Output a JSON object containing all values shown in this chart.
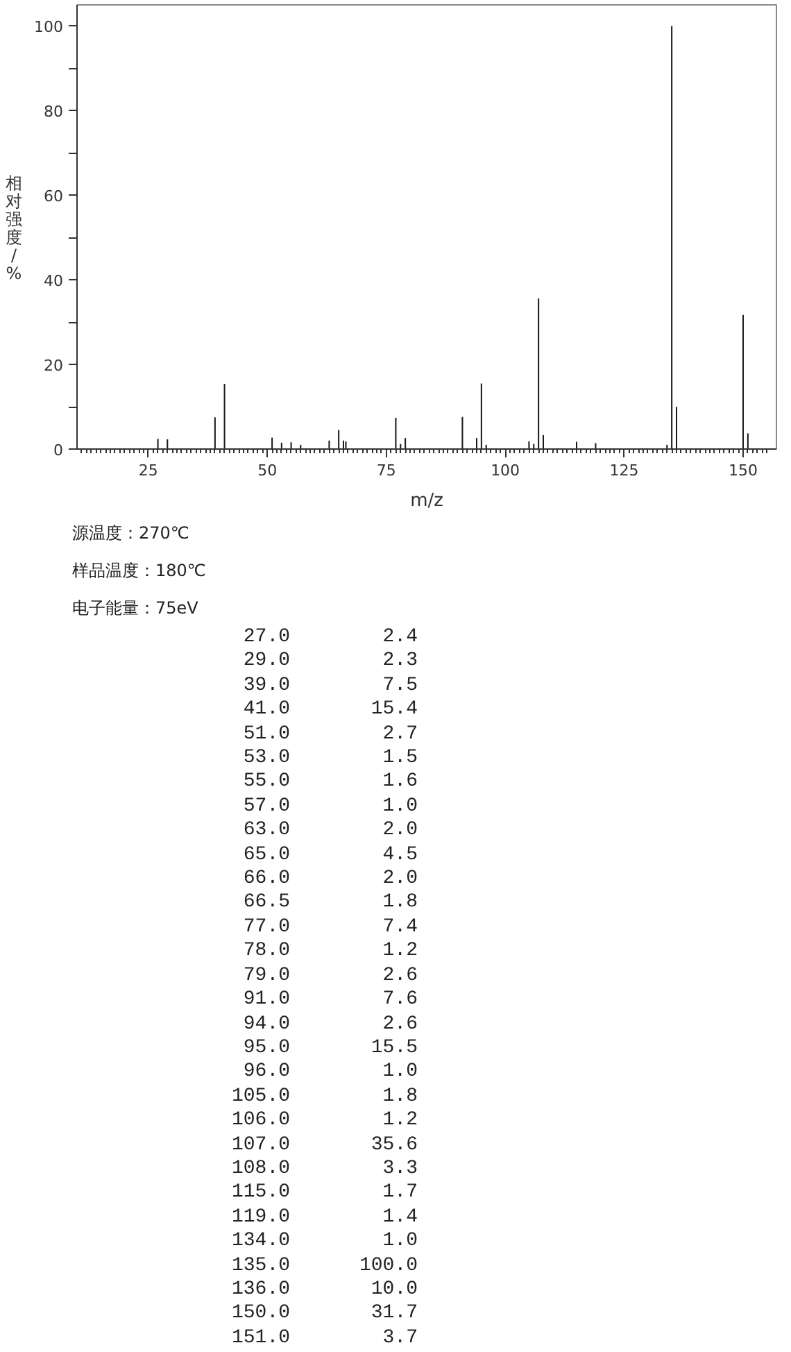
{
  "chart_data": [
    {
      "type": "bar",
      "xlabel": "m/z",
      "ylabel": "相对强度/%",
      "x": [
        27.0,
        29.0,
        39.0,
        41.0,
        51.0,
        53.0,
        55.0,
        57.0,
        63.0,
        65.0,
        66.0,
        66.5,
        77.0,
        78.0,
        79.0,
        91.0,
        94.0,
        95.0,
        96.0,
        105.0,
        106.0,
        107.0,
        108.0,
        115.0,
        119.0,
        134.0,
        135.0,
        136.0,
        150.0,
        151.0
      ],
      "values": [
        2.4,
        2.3,
        7.5,
        15.4,
        2.7,
        1.5,
        1.6,
        1.0,
        2.0,
        4.5,
        2.0,
        1.8,
        7.4,
        1.2,
        2.6,
        7.6,
        2.6,
        15.5,
        1.0,
        1.8,
        1.2,
        35.6,
        3.3,
        1.7,
        1.4,
        1.0,
        100.0,
        10.0,
        31.7,
        3.7
      ],
      "color": "#1a1a1a",
      "grid": false,
      "xlim": [
        10,
        157
      ],
      "ylim": [
        0,
        105
      ],
      "yticks": [
        0,
        {
          "value": 10,
          "label": null
        },
        20,
        {
          "value": 30,
          "label": null
        },
        40,
        {
          "value": 50,
          "label": null
        },
        60,
        {
          "value": 70,
          "label": null
        },
        80,
        {
          "value": 90,
          "label": null
        },
        100
      ],
      "xticks": [
        {
          "value": 11,
          "label": null
        },
        {
          "value": 12,
          "label": null
        },
        {
          "value": 13,
          "label": null
        },
        {
          "value": 14,
          "label": null
        },
        {
          "value": 15,
          "label": null
        },
        {
          "value": 16,
          "label": null
        },
        {
          "value": 17,
          "label": null
        },
        {
          "value": 18,
          "label": null
        },
        {
          "value": 19,
          "label": null
        },
        {
          "value": 20,
          "label": null
        },
        {
          "value": 21,
          "label": null
        },
        {
          "value": 22,
          "label": null
        },
        {
          "value": 23,
          "label": null
        },
        {
          "value": 24,
          "label": null
        },
        25,
        {
          "value": 26,
          "label": null
        },
        {
          "value": 27,
          "label": null
        },
        {
          "value": 28,
          "label": null
        },
        {
          "value": 29,
          "label": null
        },
        {
          "value": 30,
          "label": null
        },
        {
          "value": 31,
          "label": null
        },
        {
          "value": 32,
          "label": null
        },
        {
          "value": 33,
          "label": null
        },
        {
          "value": 34,
          "label": null
        },
        {
          "value": 35,
          "label": null
        },
        {
          "value": 36,
          "label": null
        },
        {
          "value": 37,
          "label": null
        },
        {
          "value": 38,
          "label": null
        },
        {
          "value": 39,
          "label": null
        },
        {
          "value": 40,
          "label": null
        },
        {
          "value": 41,
          "label": null
        },
        {
          "value": 42,
          "label": null
        },
        {
          "value": 43,
          "label": null
        },
        {
          "value": 44,
          "label": null
        },
        {
          "value": 45,
          "label": null
        },
        {
          "value": 46,
          "label": null
        },
        {
          "value": 47,
          "label": null
        },
        {
          "value": 48,
          "label": null
        },
        {
          "value": 49,
          "label": null
        },
        50,
        {
          "value": 51,
          "label": null
        },
        {
          "value": 52,
          "label": null
        },
        {
          "value": 53,
          "label": null
        },
        {
          "value": 54,
          "label": null
        },
        {
          "value": 55,
          "label": null
        },
        {
          "value": 56,
          "label": null
        },
        {
          "value": 57,
          "label": null
        },
        {
          "value": 58,
          "label": null
        },
        {
          "value": 59,
          "label": null
        },
        {
          "value": 60,
          "label": null
        },
        {
          "value": 61,
          "label": null
        },
        {
          "value": 62,
          "label": null
        },
        {
          "value": 63,
          "label": null
        },
        {
          "value": 64,
          "label": null
        },
        {
          "value": 65,
          "label": null
        },
        {
          "value": 66,
          "label": null
        },
        {
          "value": 67,
          "label": null
        },
        {
          "value": 68,
          "label": null
        },
        {
          "value": 69,
          "label": null
        },
        {
          "value": 70,
          "label": null
        },
        {
          "value": 71,
          "label": null
        },
        {
          "value": 72,
          "label": null
        },
        {
          "value": 73,
          "label": null
        },
        {
          "value": 74,
          "label": null
        },
        75,
        {
          "value": 76,
          "label": null
        },
        {
          "value": 77,
          "label": null
        },
        {
          "value": 78,
          "label": null
        },
        {
          "value": 79,
          "label": null
        },
        {
          "value": 80,
          "label": null
        },
        {
          "value": 81,
          "label": null
        },
        {
          "value": 82,
          "label": null
        },
        {
          "value": 83,
          "label": null
        },
        {
          "value": 84,
          "label": null
        },
        {
          "value": 85,
          "label": null
        },
        {
          "value": 86,
          "label": null
        },
        {
          "value": 87,
          "label": null
        },
        {
          "value": 88,
          "label": null
        },
        {
          "value": 89,
          "label": null
        },
        {
          "value": 90,
          "label": null
        },
        {
          "value": 91,
          "label": null
        },
        {
          "value": 92,
          "label": null
        },
        {
          "value": 93,
          "label": null
        },
        {
          "value": 94,
          "label": null
        },
        {
          "value": 95,
          "label": null
        },
        {
          "value": 96,
          "label": null
        },
        {
          "value": 97,
          "label": null
        },
        {
          "value": 98,
          "label": null
        },
        {
          "value": 99,
          "label": null
        },
        100,
        {
          "value": 101,
          "label": null
        },
        {
          "value": 102,
          "label": null
        },
        {
          "value": 103,
          "label": null
        },
        {
          "value": 104,
          "label": null
        },
        {
          "value": 105,
          "label": null
        },
        {
          "value": 106,
          "label": null
        },
        {
          "value": 107,
          "label": null
        },
        {
          "value": 108,
          "label": null
        },
        {
          "value": 109,
          "label": null
        },
        {
          "value": 110,
          "label": null
        },
        {
          "value": 111,
          "label": null
        },
        {
          "value": 112,
          "label": null
        },
        {
          "value": 113,
          "label": null
        },
        {
          "value": 114,
          "label": null
        },
        {
          "value": 115,
          "label": null
        },
        {
          "value": 116,
          "label": null
        },
        {
          "value": 117,
          "label": null
        },
        {
          "value": 118,
          "label": null
        },
        {
          "value": 119,
          "label": null
        },
        {
          "value": 120,
          "label": null
        },
        {
          "value": 121,
          "label": null
        },
        {
          "value": 122,
          "label": null
        },
        {
          "value": 123,
          "label": null
        },
        {
          "value": 124,
          "label": null
        },
        125,
        {
          "value": 126,
          "label": null
        },
        {
          "value": 127,
          "label": null
        },
        {
          "value": 128,
          "label": null
        },
        {
          "value": 129,
          "label": null
        },
        {
          "value": 130,
          "label": null
        },
        {
          "value": 131,
          "label": null
        },
        {
          "value": 132,
          "label": null
        },
        {
          "value": 133,
          "label": null
        },
        {
          "value": 134,
          "label": null
        },
        {
          "value": 135,
          "label": null
        },
        {
          "value": 136,
          "label": null
        },
        {
          "value": 137,
          "label": null
        },
        {
          "value": 138,
          "label": null
        },
        {
          "value": 139,
          "label": null
        },
        {
          "value": 140,
          "label": null
        },
        {
          "value": 141,
          "label": null
        },
        {
          "value": 142,
          "label": null
        },
        {
          "value": 143,
          "label": null
        },
        {
          "value": 144,
          "label": null
        },
        {
          "value": 145,
          "label": null
        },
        {
          "value": 146,
          "label": null
        },
        {
          "value": 147,
          "label": null
        },
        {
          "value": 148,
          "label": null
        },
        {
          "value": 149,
          "label": null
        },
        150,
        {
          "value": 151,
          "label": null
        },
        {
          "value": 152,
          "label": null
        },
        {
          "value": 153,
          "label": null
        },
        {
          "value": 154,
          "label": null
        },
        {
          "value": 155,
          "label": null
        }
      ],
      "annotations": [
        "源温度：270℃",
        "样品温度：180℃",
        "电子能量：75eV"
      ]
    },
    {
      "type": "other",
      "annotations": [
        "27.0",
        "2.4",
        "29.0",
        "2.3",
        "39.0",
        "7.5",
        "41.0",
        "15.4",
        "51.0",
        "2.7",
        "53.0",
        "1.5",
        "55.0",
        "1.6",
        "57.0",
        "1.0",
        "63.0",
        "2.0",
        "65.0",
        "4.5",
        "66.0",
        "2.0",
        "66.5",
        "1.8",
        "77.0",
        "7.4",
        "78.0",
        "1.2",
        "79.0",
        "2.6",
        "91.0",
        "7.6",
        "94.0",
        "2.6",
        "95.0",
        "15.5",
        "96.0",
        "1.0",
        "105.0",
        "1.8",
        "106.0",
        "1.2",
        "107.0",
        "35.6",
        "108.0",
        "3.3",
        "115.0",
        "1.7",
        "119.0",
        "1.4",
        "134.0",
        "1.0",
        "135.0",
        "100.0",
        "136.0",
        "10.0",
        "150.0",
        "31.7",
        "151.0",
        "3.7"
      ]
    }
  ]
}
